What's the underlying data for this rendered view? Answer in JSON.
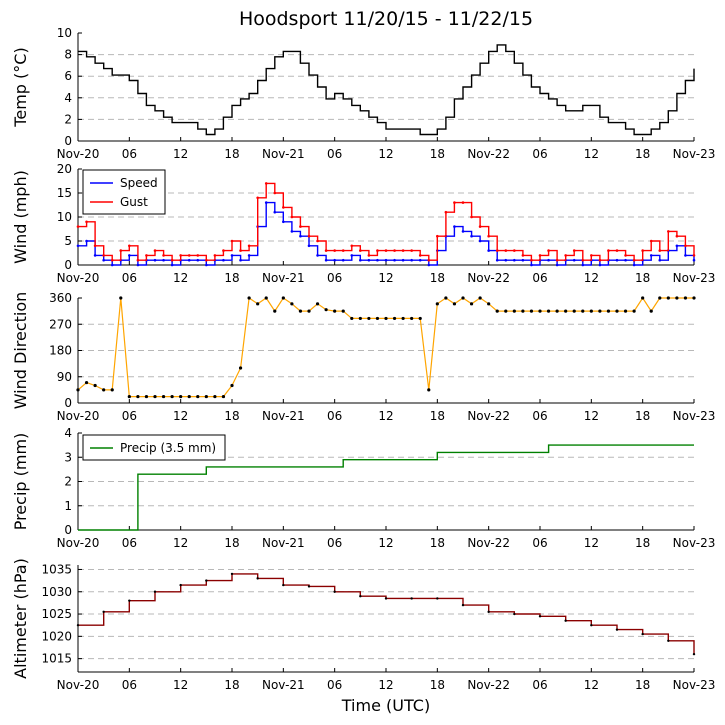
{
  "title": "Hoodsport 11/20/15 - 11/22/15",
  "xlabel": "Time (UTC)",
  "x_ticks": [
    "Nov-20",
    "06",
    "12",
    "18",
    "Nov-21",
    "06",
    "12",
    "18",
    "Nov-22",
    "06",
    "12",
    "18",
    "Nov-23"
  ],
  "chart_data": [
    {
      "type": "line",
      "ylabel": "Temp (°C)",
      "ylim": [
        0,
        10
      ],
      "yticks": [
        0,
        2,
        4,
        6,
        8,
        10
      ],
      "grid": true,
      "series": [
        {
          "color": "#000000",
          "x_hours": [
            0,
            1,
            2,
            3,
            4,
            5,
            6,
            7,
            8,
            9,
            10,
            11,
            12,
            13,
            14,
            15,
            16,
            17,
            18,
            19,
            20,
            21,
            22,
            23,
            24,
            25,
            26,
            27,
            28,
            29,
            30,
            31,
            32,
            33,
            34,
            35,
            36,
            37,
            38,
            39,
            40,
            41,
            42,
            43,
            44,
            45,
            46,
            47,
            48,
            49,
            50,
            51,
            52,
            53,
            54,
            55,
            56,
            57,
            58,
            59,
            60,
            61,
            62,
            63,
            64,
            65,
            66,
            67,
            68,
            69,
            70,
            71,
            72
          ],
          "values": [
            8.3,
            7.8,
            7.2,
            6.7,
            6.1,
            6.1,
            5.6,
            4.4,
            3.3,
            2.8,
            2.2,
            1.7,
            1.7,
            1.7,
            1.1,
            0.6,
            1.1,
            2.2,
            3.3,
            3.9,
            4.4,
            5.6,
            6.7,
            7.8,
            8.3,
            8.3,
            7.2,
            6.1,
            5.0,
            3.9,
            4.4,
            3.9,
            3.3,
            2.8,
            2.2,
            1.7,
            1.1,
            1.1,
            1.1,
            1.1,
            0.6,
            0.6,
            1.1,
            2.2,
            3.9,
            5.0,
            6.1,
            7.2,
            8.3,
            8.9,
            8.3,
            7.2,
            6.1,
            5.0,
            4.4,
            3.9,
            3.3,
            2.8,
            2.8,
            3.3,
            3.3,
            2.2,
            1.7,
            1.7,
            1.1,
            0.6,
            0.6,
            1.1,
            1.7,
            2.8,
            4.4,
            5.6,
            6.7
          ]
        }
      ]
    },
    {
      "type": "line",
      "ylabel": "Wind (mph)",
      "ylim": [
        0,
        20
      ],
      "yticks": [
        0,
        5,
        10,
        15,
        20
      ],
      "grid": true,
      "legend": "top-left",
      "series": [
        {
          "name": "Speed",
          "color": "#0000ff",
          "x_hours": [
            0,
            1,
            2,
            3,
            4,
            5,
            6,
            7,
            8,
            9,
            10,
            11,
            12,
            13,
            14,
            15,
            16,
            17,
            18,
            19,
            20,
            21,
            22,
            23,
            24,
            25,
            26,
            27,
            28,
            29,
            30,
            31,
            32,
            33,
            34,
            35,
            36,
            37,
            38,
            39,
            40,
            41,
            42,
            43,
            44,
            45,
            46,
            47,
            48,
            49,
            50,
            51,
            52,
            53,
            54,
            55,
            56,
            57,
            58,
            59,
            60,
            61,
            62,
            63,
            64,
            65,
            66,
            67,
            68,
            69,
            70,
            71,
            72
          ],
          "values": [
            4,
            5,
            2,
            1,
            0,
            1,
            2,
            0,
            1,
            1,
            1,
            0,
            1,
            1,
            1,
            0,
            1,
            1,
            2,
            1,
            2,
            8,
            13,
            11,
            9,
            7,
            6,
            4,
            2,
            1,
            1,
            1,
            2,
            1,
            1,
            1,
            1,
            1,
            1,
            1,
            1,
            0,
            3,
            6,
            8,
            7,
            6,
            5,
            3,
            1,
            1,
            1,
            1,
            0,
            1,
            1,
            0,
            1,
            1,
            0,
            1,
            0,
            1,
            1,
            1,
            0,
            1,
            2,
            1,
            3,
            4,
            2,
            1
          ]
        },
        {
          "name": "Gust",
          "color": "#ff0000",
          "x_hours": [
            0,
            1,
            2,
            3,
            4,
            5,
            6,
            7,
            8,
            9,
            10,
            11,
            12,
            13,
            14,
            15,
            16,
            17,
            18,
            19,
            20,
            21,
            22,
            23,
            24,
            25,
            26,
            27,
            28,
            29,
            30,
            31,
            32,
            33,
            34,
            35,
            36,
            37,
            38,
            39,
            40,
            41,
            42,
            43,
            44,
            45,
            46,
            47,
            48,
            49,
            50,
            51,
            52,
            53,
            54,
            55,
            56,
            57,
            58,
            59,
            60,
            61,
            62,
            63,
            64,
            65,
            66,
            67,
            68,
            69,
            70,
            71,
            72
          ],
          "values": [
            8,
            9,
            4,
            2,
            1,
            3,
            4,
            1,
            2,
            3,
            2,
            1,
            2,
            2,
            2,
            1,
            2,
            3,
            5,
            3,
            4,
            14,
            17,
            15,
            12,
            10,
            8,
            6,
            5,
            3,
            3,
            3,
            4,
            3,
            2,
            3,
            3,
            3,
            3,
            3,
            2,
            1,
            6,
            11,
            13,
            13,
            10,
            8,
            6,
            3,
            3,
            3,
            2,
            1,
            2,
            3,
            1,
            2,
            3,
            1,
            2,
            1,
            3,
            3,
            2,
            1,
            3,
            5,
            3,
            7,
            6,
            4,
            2
          ]
        }
      ]
    },
    {
      "type": "scatter",
      "ylabel": "Wind Direction",
      "ylim": [
        0,
        360
      ],
      "yticks": [
        0,
        90,
        180,
        270,
        360
      ],
      "grid": true,
      "series": [
        {
          "color": "#ffa500",
          "x_hours": [
            0,
            1,
            2,
            3,
            4,
            5,
            6,
            7,
            8,
            9,
            10,
            11,
            12,
            13,
            14,
            15,
            16,
            17,
            18,
            19,
            20,
            21,
            22,
            23,
            24,
            25,
            26,
            27,
            28,
            29,
            30,
            31,
            32,
            33,
            34,
            35,
            36,
            37,
            38,
            39,
            40,
            41,
            42,
            43,
            44,
            45,
            46,
            47,
            48,
            49,
            50,
            51,
            52,
            53,
            54,
            55,
            56,
            57,
            58,
            59,
            60,
            61,
            62,
            63,
            64,
            65,
            66,
            67,
            68,
            69,
            70,
            71,
            72
          ],
          "values": [
            45,
            70,
            60,
            45,
            45,
            360,
            22,
            22,
            22,
            22,
            22,
            22,
            22,
            22,
            22,
            22,
            22,
            22,
            60,
            120,
            360,
            340,
            360,
            315,
            360,
            340,
            315,
            315,
            340,
            320,
            315,
            315,
            290,
            290,
            290,
            290,
            290,
            290,
            290,
            290,
            290,
            45,
            340,
            360,
            340,
            360,
            340,
            360,
            340,
            315,
            315,
            315,
            315,
            315,
            315,
            315,
            315,
            315,
            315,
            315,
            315,
            315,
            315,
            315,
            315,
            315,
            360,
            315,
            360,
            360,
            360,
            360,
            360
          ]
        }
      ]
    },
    {
      "type": "line",
      "ylabel": "Precip (mm)",
      "ylim": [
        0,
        4
      ],
      "yticks": [
        0,
        1,
        2,
        3,
        4
      ],
      "grid": true,
      "legend": "top-left",
      "series": [
        {
          "name": "Precip (3.5 mm)",
          "color": "#008000",
          "x_hours": [
            0,
            7,
            7,
            15,
            15,
            31,
            31,
            42,
            42,
            55,
            55,
            72
          ],
          "values": [
            0,
            0,
            2.3,
            2.3,
            2.6,
            2.6,
            2.9,
            2.9,
            3.2,
            3.2,
            3.5,
            3.5
          ]
        }
      ]
    },
    {
      "type": "line",
      "ylabel": "Altimeter (hPa)",
      "ylim": [
        1012,
        1036
      ],
      "yticks": [
        1015,
        1020,
        1025,
        1030,
        1035
      ],
      "grid": true,
      "series": [
        {
          "color": "#8b0000",
          "x_hours": [
            0,
            3,
            6,
            9,
            12,
            15,
            18,
            21,
            24,
            27,
            30,
            33,
            36,
            39,
            42,
            45,
            48,
            51,
            54,
            57,
            60,
            63,
            66,
            69,
            72
          ],
          "values": [
            1022.5,
            1025.5,
            1028,
            1030,
            1031.5,
            1032.5,
            1034,
            1033,
            1031.5,
            1031.2,
            1030,
            1029,
            1028.5,
            1028.5,
            1028.5,
            1027,
            1025.5,
            1025,
            1024.5,
            1023.5,
            1022.5,
            1021.5,
            1020.5,
            1019,
            1016
          ]
        }
      ]
    }
  ]
}
